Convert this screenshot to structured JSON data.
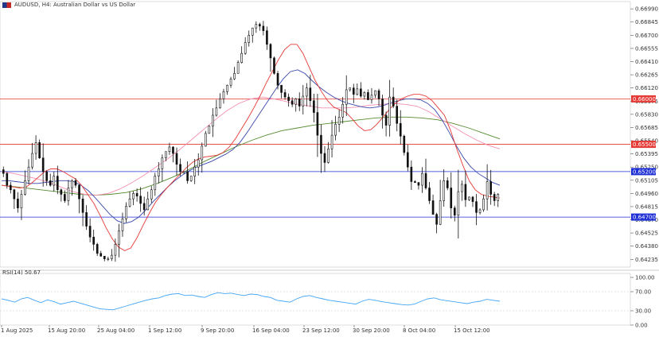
{
  "header": {
    "title": "AUDUSD, H4:  Australian Dollar vs US Dollar",
    "flag_icon": "au-us-flag-icon"
  },
  "rsi": {
    "label": "RSI(14) 50.67",
    "period": 14,
    "value": 50.67
  },
  "colors": {
    "candle": "#111111",
    "ma_fast": "#e53935",
    "ma_mid": "#3949ab",
    "ma_slow_pink": "#f48fb1",
    "ma_long": "#558b2f",
    "res_line": "#e53935",
    "sup_line": "#1e2fd6",
    "rsi_line": "#42a5f5",
    "grid": "#c8c8c8"
  },
  "chart_data": [
    {
      "type": "candlestick",
      "symbol": "AUDUSD",
      "timeframe": "H4",
      "y_ticks": [
        "0.66990",
        "0.66845",
        "0.66700",
        "0.66555",
        "0.66410",
        "0.66265",
        "0.66120",
        "0.65975",
        "0.65830",
        "0.65685",
        "0.65540",
        "0.65395",
        "0.65250",
        "0.65105",
        "0.64960",
        "0.64815",
        "0.64670",
        "0.64525",
        "0.64380",
        "0.64235"
      ],
      "x_ticks": [
        "1 Aug 2025",
        "15 Aug 20:00",
        "25 Aug 04:00",
        "1 Sep 12:00",
        "9 Sep 20:00",
        "16 Sep 04:00",
        "23 Sep 12:00",
        "30 Sep 20:00",
        "8 Oct 04:00",
        "15 Oct 12:00"
      ],
      "ylim": [
        0.6415,
        0.6707
      ],
      "horizontal_levels": [
        {
          "label": "0.66000",
          "value": 0.66,
          "color": "#e53935"
        },
        {
          "label": "0.65500",
          "value": 0.655,
          "color": "#e53935"
        },
        {
          "label": "0.65200",
          "value": 0.652,
          "color": "#1e2fd6"
        },
        {
          "label": "0.64700",
          "value": 0.647,
          "color": "#1e2fd6"
        }
      ],
      "price_path": [
        0.6518,
        0.6505,
        0.65,
        0.649,
        0.648,
        0.6495,
        0.651,
        0.6525,
        0.654,
        0.6552,
        0.6535,
        0.652,
        0.651,
        0.6505,
        0.6515,
        0.65,
        0.6495,
        0.6488,
        0.6502,
        0.651,
        0.6505,
        0.649,
        0.6475,
        0.646,
        0.6448,
        0.644,
        0.643,
        0.6427,
        0.6424,
        0.6424,
        0.6428,
        0.644,
        0.6455,
        0.6468,
        0.6482,
        0.649,
        0.6496,
        0.6493,
        0.6485,
        0.6478,
        0.649,
        0.65,
        0.6515,
        0.6523,
        0.6535,
        0.6542,
        0.6547,
        0.654,
        0.6528,
        0.652,
        0.652,
        0.651,
        0.6515,
        0.6525,
        0.6533,
        0.6548,
        0.6562,
        0.657,
        0.6582,
        0.659,
        0.66,
        0.6608,
        0.6615,
        0.6622,
        0.6628,
        0.664,
        0.665,
        0.6662,
        0.667,
        0.6678,
        0.6682,
        0.668,
        0.6675,
        0.666,
        0.6645,
        0.6628,
        0.6615,
        0.6607,
        0.6602,
        0.6598,
        0.6594,
        0.66,
        0.6592,
        0.6603,
        0.6612,
        0.6598,
        0.6585,
        0.656,
        0.654,
        0.653,
        0.6545,
        0.656,
        0.6572,
        0.658,
        0.6594,
        0.661,
        0.6612,
        0.6605,
        0.6611,
        0.6603,
        0.6607,
        0.6599,
        0.6604,
        0.6609,
        0.66,
        0.6582,
        0.6571,
        0.6602,
        0.6592,
        0.6573,
        0.6559,
        0.6541,
        0.6525,
        0.6509,
        0.6508,
        0.6505,
        0.6518,
        0.6502,
        0.6488,
        0.6473,
        0.6462,
        0.6488,
        0.651,
        0.6502,
        0.648,
        0.6472,
        0.6498,
        0.6506,
        0.6489,
        0.6492,
        0.6487,
        0.6475,
        0.6478,
        0.649,
        0.6509,
        0.6495,
        0.6488,
        0.6495
      ],
      "ma_fast": [
        0.6505,
        0.6504,
        0.6503,
        0.6502,
        0.6503,
        0.6508,
        0.6514,
        0.652,
        0.6523,
        0.6523,
        0.652,
        0.6516,
        0.6512,
        0.6505,
        0.6495,
        0.6485,
        0.6472,
        0.6458,
        0.6446,
        0.6437,
        0.6433,
        0.6436,
        0.6447,
        0.6461,
        0.6474,
        0.6486,
        0.6495,
        0.6503,
        0.651,
        0.6517,
        0.6524,
        0.653,
        0.6534,
        0.6536,
        0.6537,
        0.6538,
        0.6541,
        0.6547,
        0.6556,
        0.6567,
        0.6578,
        0.659,
        0.6603,
        0.6617,
        0.663,
        0.6643,
        0.6654,
        0.666,
        0.666,
        0.665,
        0.6635,
        0.662,
        0.6608,
        0.6598,
        0.6591,
        0.6588,
        0.6585,
        0.6578,
        0.657,
        0.6565,
        0.6566,
        0.6572,
        0.658,
        0.6588,
        0.6595,
        0.66,
        0.6603,
        0.6605,
        0.6605,
        0.6603,
        0.6598,
        0.659,
        0.6582,
        0.6565,
        0.6545,
        0.6527,
        0.651,
        0.65,
        0.6495,
        0.6493,
        0.6492,
        0.6491
      ],
      "ma_mid": [
        0.651,
        0.651,
        0.6509,
        0.6508,
        0.6507,
        0.6507,
        0.6508,
        0.6509,
        0.651,
        0.651,
        0.6509,
        0.6505,
        0.6499,
        0.6491,
        0.6482,
        0.6473,
        0.6466,
        0.6463,
        0.6465,
        0.647,
        0.6478,
        0.6487,
        0.6495,
        0.6503,
        0.651,
        0.6516,
        0.6521,
        0.6525,
        0.6528,
        0.6531,
        0.6535,
        0.6539,
        0.6544,
        0.6552,
        0.6563,
        0.6575,
        0.6587,
        0.6599,
        0.6611,
        0.6622,
        0.663,
        0.6632,
        0.6628,
        0.662,
        0.6613,
        0.6607,
        0.6602,
        0.6598,
        0.6595,
        0.6593,
        0.6591,
        0.659,
        0.6591,
        0.6593,
        0.6596,
        0.6598,
        0.66,
        0.66,
        0.6599,
        0.6595,
        0.6588,
        0.6577,
        0.6563,
        0.6548,
        0.6535,
        0.6525,
        0.6518,
        0.6513,
        0.6508,
        0.6505
      ],
      "ma_slow": [
        0.652,
        0.6518,
        0.6515,
        0.6512,
        0.6508,
        0.6503,
        0.6498,
        0.6495,
        0.6494,
        0.6496,
        0.6501,
        0.6508,
        0.6516,
        0.6525,
        0.6534,
        0.6544,
        0.6555,
        0.6566,
        0.6577,
        0.6587,
        0.6595,
        0.66,
        0.6602,
        0.66,
        0.6597,
        0.6594,
        0.6592,
        0.659,
        0.659,
        0.659,
        0.6591,
        0.6593,
        0.6594,
        0.6595,
        0.6594,
        0.6592,
        0.6586,
        0.6578,
        0.657,
        0.6562,
        0.6555,
        0.6549,
        0.6545
      ],
      "ma_long": [
        0.6505,
        0.6503,
        0.6501,
        0.6499,
        0.6497,
        0.6495,
        0.6494,
        0.6495,
        0.6497,
        0.6501,
        0.6507,
        0.6514,
        0.6522,
        0.6531,
        0.6539,
        0.6547,
        0.6554,
        0.656,
        0.6565,
        0.6568,
        0.6571,
        0.6573,
        0.6575,
        0.6577,
        0.6579,
        0.658,
        0.658,
        0.6579,
        0.6577,
        0.6573,
        0.6568,
        0.6562,
        0.6556
      ],
      "rsi_ylim": [
        0,
        100
      ],
      "rsi_ticks": [
        "100.00",
        "70.00",
        "30.00",
        "0.00"
      ],
      "rsi_levels": [
        70,
        30
      ],
      "rsi_values": [
        55,
        52,
        48,
        55,
        58,
        52,
        47,
        53,
        49,
        44,
        47,
        50,
        46,
        42,
        38,
        34,
        33,
        32,
        36,
        40,
        44,
        48,
        52,
        55,
        57,
        62,
        65,
        66,
        62,
        63,
        60,
        58,
        64,
        68,
        66,
        67,
        64,
        62,
        65,
        64,
        60,
        58,
        52,
        50,
        48,
        55,
        60,
        62,
        58,
        55,
        52,
        50,
        48,
        46,
        44,
        50,
        54,
        52,
        49,
        47,
        45,
        43,
        42,
        44,
        50,
        55,
        57,
        53,
        51,
        49,
        47,
        45,
        48,
        50,
        54,
        52,
        50
      ]
    }
  ]
}
